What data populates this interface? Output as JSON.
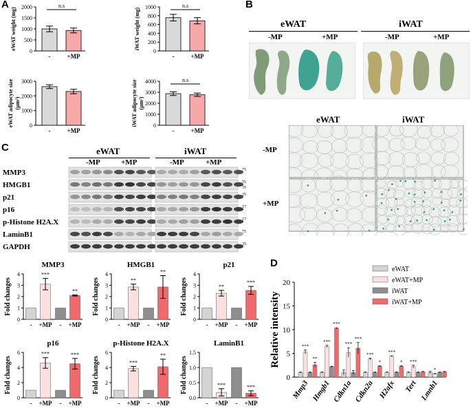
{
  "panels": {
    "A": "A",
    "B": "B",
    "C": "C",
    "D": "D"
  },
  "colors": {
    "control": "#d9d9d9",
    "mp": "#f7a8a8",
    "ewat": "#d4d4d4",
    "ewat_mp": "#fbe0e0",
    "iwat": "#8e8e8e",
    "iwat_mp": "#ef6b6b"
  },
  "panel_a": [
    {
      "ylabel": "eWAT weight (mg)",
      "ylim": [
        0,
        2000
      ],
      "ticks": [
        0,
        500,
        1000,
        1500,
        2000
      ],
      "categories": [
        "-",
        "+MP"
      ],
      "values": [
        1000,
        930
      ],
      "errors": [
        130,
        110
      ],
      "sig": "n.s"
    },
    {
      "ylabel": "iWAT weight (mg)",
      "ylim": [
        0,
        1000
      ],
      "ticks": [
        0,
        200,
        400,
        600,
        800,
        1000
      ],
      "categories": [
        "-",
        "+MP"
      ],
      "values": [
        755,
        685
      ],
      "errors": [
        75,
        70
      ],
      "sig": "n.s"
    },
    {
      "ylabel": "eWAT adipocyte size (μm²)",
      "ylim": [
        0,
        3000
      ],
      "ticks": [
        0,
        1000,
        2000,
        3000
      ],
      "categories": [
        "-",
        "+MP"
      ],
      "values": [
        2630,
        2300
      ],
      "errors": [
        130,
        150
      ],
      "sig": ""
    },
    {
      "ylabel": "iWAT adipocyte size (μm²)",
      "ylim": [
        0,
        4000
      ],
      "ticks": [
        0,
        1000,
        2000,
        3000,
        4000
      ],
      "categories": [
        "-",
        "+MP"
      ],
      "values": [
        2870,
        2770
      ],
      "errors": [
        170,
        150
      ],
      "sig": "n.s"
    }
  ],
  "panel_b": {
    "ewat": "eWAT",
    "iwat": "iWAT",
    "minus_mp": "-MP",
    "plus_mp": "+MP"
  },
  "panel_c": {
    "ewat": "eWAT",
    "iwat": "iWAT",
    "minus_mp": "-MP",
    "plus_mp": "+MP",
    "blots": [
      {
        "name": "MMP3",
        "markers": [
          "75"
        ]
      },
      {
        "name": "HMGB1",
        "markers": [
          "55",
          "35"
        ]
      },
      {
        "name": "p21",
        "markers": [
          "25"
        ]
      },
      {
        "name": "p16",
        "markers": [
          "17"
        ]
      },
      {
        "name": "p-Histone H2A.X",
        "markers": [
          "17"
        ]
      },
      {
        "name": "LaminB1",
        "markers": [
          "75"
        ]
      },
      {
        "name": "GAPDH",
        "markers": [
          "35"
        ]
      }
    ],
    "charts": [
      {
        "title": "MMP3",
        "ylabel": "Fold changes",
        "ylim": [
          0,
          4
        ],
        "ticks": [
          0,
          1,
          2,
          3,
          4
        ],
        "values": [
          1,
          3.1,
          1,
          2.1
        ],
        "errors": [
          0,
          0.5,
          0,
          0.05
        ],
        "sig": [
          "",
          "***",
          "",
          "**"
        ]
      },
      {
        "title": "HMGB1",
        "ylabel": "Fold changes",
        "ylim": [
          0,
          4
        ],
        "ticks": [
          0,
          1,
          2,
          3,
          4
        ],
        "values": [
          1,
          2.85,
          1,
          2.85
        ],
        "errors": [
          0,
          0.25,
          0,
          1.0
        ],
        "sig": [
          "",
          "**",
          "",
          "**"
        ]
      },
      {
        "title": "p21",
        "ylabel": "Fold changes",
        "ylim": [
          0,
          4
        ],
        "ticks": [
          0,
          1,
          2,
          3,
          4
        ],
        "values": [
          1,
          2.3,
          1,
          2.55
        ],
        "errors": [
          0,
          0.25,
          0,
          0.35
        ],
        "sig": [
          "",
          "**",
          "",
          "***"
        ]
      },
      {
        "title": "p16",
        "ylabel": "Fold changes",
        "ylim": [
          0,
          6
        ],
        "ticks": [
          0,
          2,
          4,
          6
        ],
        "values": [
          1,
          4.6,
          1,
          4.5
        ],
        "errors": [
          0,
          0.7,
          0,
          0.7
        ],
        "sig": [
          "",
          "***",
          "",
          "***"
        ]
      },
      {
        "title": "p-Histone H2A.X",
        "ylabel": "Fold changes",
        "ylim": [
          0,
          6
        ],
        "ticks": [
          0,
          2,
          4,
          6
        ],
        "values": [
          1,
          3.85,
          1,
          4.1
        ],
        "errors": [
          0,
          0.3,
          0,
          1.0
        ],
        "sig": [
          "",
          "***",
          "",
          "**"
        ]
      },
      {
        "title": "LaminB1",
        "ylabel": "Fold changes",
        "ylim": [
          0,
          1.5
        ],
        "ticks": [
          0.0,
          0.5,
          1.0,
          1.5
        ],
        "values": [
          1,
          0.18,
          1,
          0.15
        ],
        "errors": [
          0,
          0.12,
          0,
          0.08
        ],
        "sig": [
          "",
          "***",
          "",
          "***"
        ]
      }
    ],
    "xcats": [
      "-",
      "+MP",
      "-",
      "+MP"
    ]
  },
  "chart_data": {
    "type": "bar",
    "ylabel": "Relative intensity",
    "ylim": [
      0,
      20
    ],
    "ticks": [
      0,
      5,
      10,
      15,
      20
    ],
    "categories": [
      "Mmp3",
      "Hmgb1",
      "Cdkn1a",
      "Cdkn2a",
      "H2afx",
      "Tert",
      "Lmnb1"
    ],
    "series": [
      {
        "name": "eWAT",
        "values": [
          1,
          1,
          1,
          1,
          1,
          1,
          1
        ],
        "errors": [
          0.1,
          0.1,
          0.5,
          0.1,
          0.1,
          0.1,
          0.2
        ]
      },
      {
        "name": "eWAT+MP",
        "values": [
          5.3,
          6.5,
          5.2,
          3.8,
          4.4,
          2.2,
          0.7
        ],
        "errors": [
          0.4,
          0.2,
          1.0,
          0.2,
          0.1,
          0.3,
          0.1
        ]
      },
      {
        "name": "iWAT",
        "values": [
          1,
          2.2,
          1,
          1,
          1,
          1,
          1
        ],
        "errors": [
          0.1,
          0.1,
          0.4,
          0.1,
          0.1,
          0.1,
          0.1
        ]
      },
      {
        "name": "iWAT+MP",
        "values": [
          2.6,
          10.3,
          6.1,
          2.3,
          2.3,
          1.1,
          1.1
        ],
        "errors": [
          0.5,
          0.1,
          1.2,
          0.1,
          0.1,
          0.1,
          0.1
        ]
      }
    ],
    "sig": [
      [
        "***",
        "**"
      ],
      [
        "***",
        "***"
      ],
      [
        "***",
        "***"
      ],
      [
        "***",
        "*"
      ],
      [
        "***",
        "*"
      ],
      [
        "***",
        ""
      ],
      [
        "*",
        ""
      ]
    ]
  }
}
